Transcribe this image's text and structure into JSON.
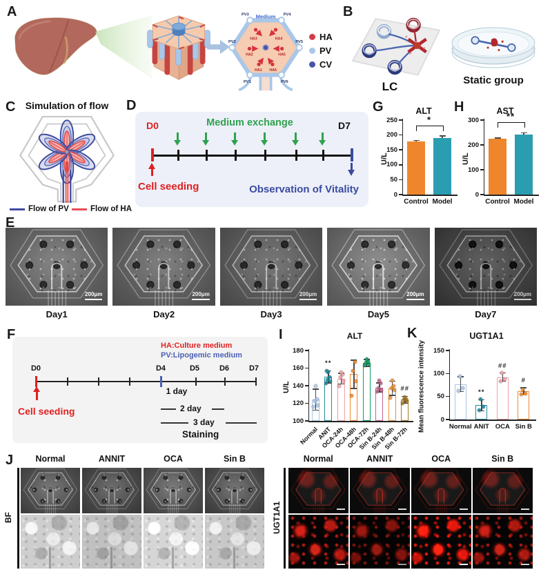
{
  "panelA": {
    "label": "A",
    "hex": {
      "medium": "Medium",
      "pv": [
        "PV1",
        "PV2",
        "PV3",
        "PV4",
        "PV5",
        "PV6"
      ],
      "ha": [
        "HA1",
        "HA2",
        "HA3",
        "HA4",
        "HA5",
        "HA6"
      ]
    },
    "legend": [
      {
        "label": "HA",
        "color": "#d63b47"
      },
      {
        "label": "PV",
        "color": "#a9c7e8"
      },
      {
        "label": "CV",
        "color": "#4856a8"
      }
    ]
  },
  "panelB": {
    "label": "B",
    "lc": "LC",
    "static": "Static group"
  },
  "panelC": {
    "label": "C",
    "title": "Simulation of flow",
    "legend": [
      {
        "label": "Flow of PV",
        "color": "#3d4b9e"
      },
      {
        "label": "Flow of HA",
        "color": "#e84b54"
      }
    ]
  },
  "panelD": {
    "label": "D",
    "d0": "D0",
    "d7": "D7",
    "medium_exchange": "Medium exchange",
    "cell_seeding": "Cell seeding",
    "observation": "Observation of Vitality"
  },
  "panelE": {
    "label": "E",
    "days": [
      "Day1",
      "Day2",
      "Day3",
      "Day5",
      "Day7"
    ],
    "scalebar": "200μm"
  },
  "panelF": {
    "label": "F",
    "ha_line": "HA:Culture medium",
    "pv_line": "PV:Lipogemic medium",
    "d0": "D0",
    "d4": "D4",
    "d5": "D5",
    "d6": "D6",
    "d7": "D7",
    "day1": "1 day",
    "day2": "2 day",
    "day3": "3 day",
    "staining": "Staining",
    "cell_seeding": "Cell seeding"
  },
  "panelJ": {
    "label": "J",
    "bf": "BF",
    "ugt": "UGT1A1",
    "columns": [
      "Normal",
      "ANNIT",
      "OCA",
      "Sin B"
    ]
  },
  "chart_data": [
    {
      "id": "G",
      "panel_label": "G",
      "type": "bar",
      "title": "ALT",
      "ylabel": "U/L",
      "ylim": [
        0,
        250
      ],
      "yticks": [
        0,
        50,
        100,
        150,
        200,
        250
      ],
      "categories": [
        "Control",
        "Model"
      ],
      "values": [
        178,
        190
      ],
      "errors": [
        4,
        7
      ],
      "colors": [
        "#f0862b",
        "#2b9db1"
      ],
      "style": "filled",
      "significance": {
        "type": "bracket",
        "pair": [
          0,
          1
        ],
        "label": "*"
      }
    },
    {
      "id": "H",
      "panel_label": "H",
      "type": "bar",
      "title": "AST",
      "ylabel": "U/L",
      "ylim": [
        0,
        300
      ],
      "yticks": [
        0,
        100,
        200,
        300
      ],
      "categories": [
        "Control",
        "Model"
      ],
      "values": [
        224,
        241
      ],
      "errors": [
        4,
        8
      ],
      "colors": [
        "#f0862b",
        "#2b9db1"
      ],
      "style": "filled",
      "significance": {
        "type": "bracket",
        "pair": [
          0,
          1
        ],
        "label": "**"
      }
    },
    {
      "id": "I",
      "panel_label": "I",
      "type": "bar",
      "title": "ALT",
      "ylabel": "U/L",
      "ylim": [
        100,
        180
      ],
      "yticks": [
        100,
        120,
        140,
        160,
        180
      ],
      "categories": [
        "Normal",
        "ANIT",
        "OCA-24h",
        "OCA-48h",
        "OCA-72h",
        "Sin B-24h",
        "Sin B-48h",
        "Sin B-72h"
      ],
      "values": [
        124,
        150,
        148,
        153,
        166,
        138,
        137,
        124
      ],
      "errors": [
        12,
        7,
        6,
        16,
        4,
        5,
        8,
        4
      ],
      "colors": [
        "#a9c6e7",
        "#1f8a9c",
        "#f29ea6",
        "#f0862b",
        "#0e9d63",
        "#c2638b",
        "#e89132",
        "#a6791f"
      ],
      "style": "outline",
      "dots": [
        [
          116,
          118,
          122,
          125,
          140
        ],
        [
          143,
          145,
          147,
          150,
          155,
          157
        ],
        [
          140,
          145,
          150,
          153,
          155
        ],
        [
          129,
          145,
          157,
          167
        ],
        [
          163,
          165,
          166,
          168,
          170
        ],
        [
          133,
          135,
          137,
          143,
          146
        ],
        [
          126,
          135,
          137,
          140,
          146
        ],
        [
          120,
          122,
          124,
          125,
          127
        ]
      ],
      "marks": {
        "1": "**",
        "7": "##"
      },
      "rotate_labels": true
    },
    {
      "id": "K",
      "panel_label": "K",
      "type": "bar",
      "title": "UGT1A1",
      "ylabel": "Mean fluorescence intensity",
      "ylim": [
        0,
        150
      ],
      "yticks": [
        0,
        50,
        100,
        150
      ],
      "categories": [
        "Normal",
        "ANIT",
        "OCA",
        "Sin B"
      ],
      "values": [
        77,
        31,
        92,
        62
      ],
      "errors": [
        16,
        12,
        9,
        7
      ],
      "colors": [
        "#a9c6e7",
        "#1f8a9c",
        "#f29ea6",
        "#f0862b"
      ],
      "style": "outline",
      "dots": [
        [
          63,
          68,
          94
        ],
        [
          20,
          28,
          45
        ],
        [
          84,
          88,
          102
        ],
        [
          55,
          57,
          66
        ]
      ],
      "marks": {
        "1": "**",
        "2": "##",
        "3": "#"
      },
      "rotate_labels": false
    }
  ]
}
